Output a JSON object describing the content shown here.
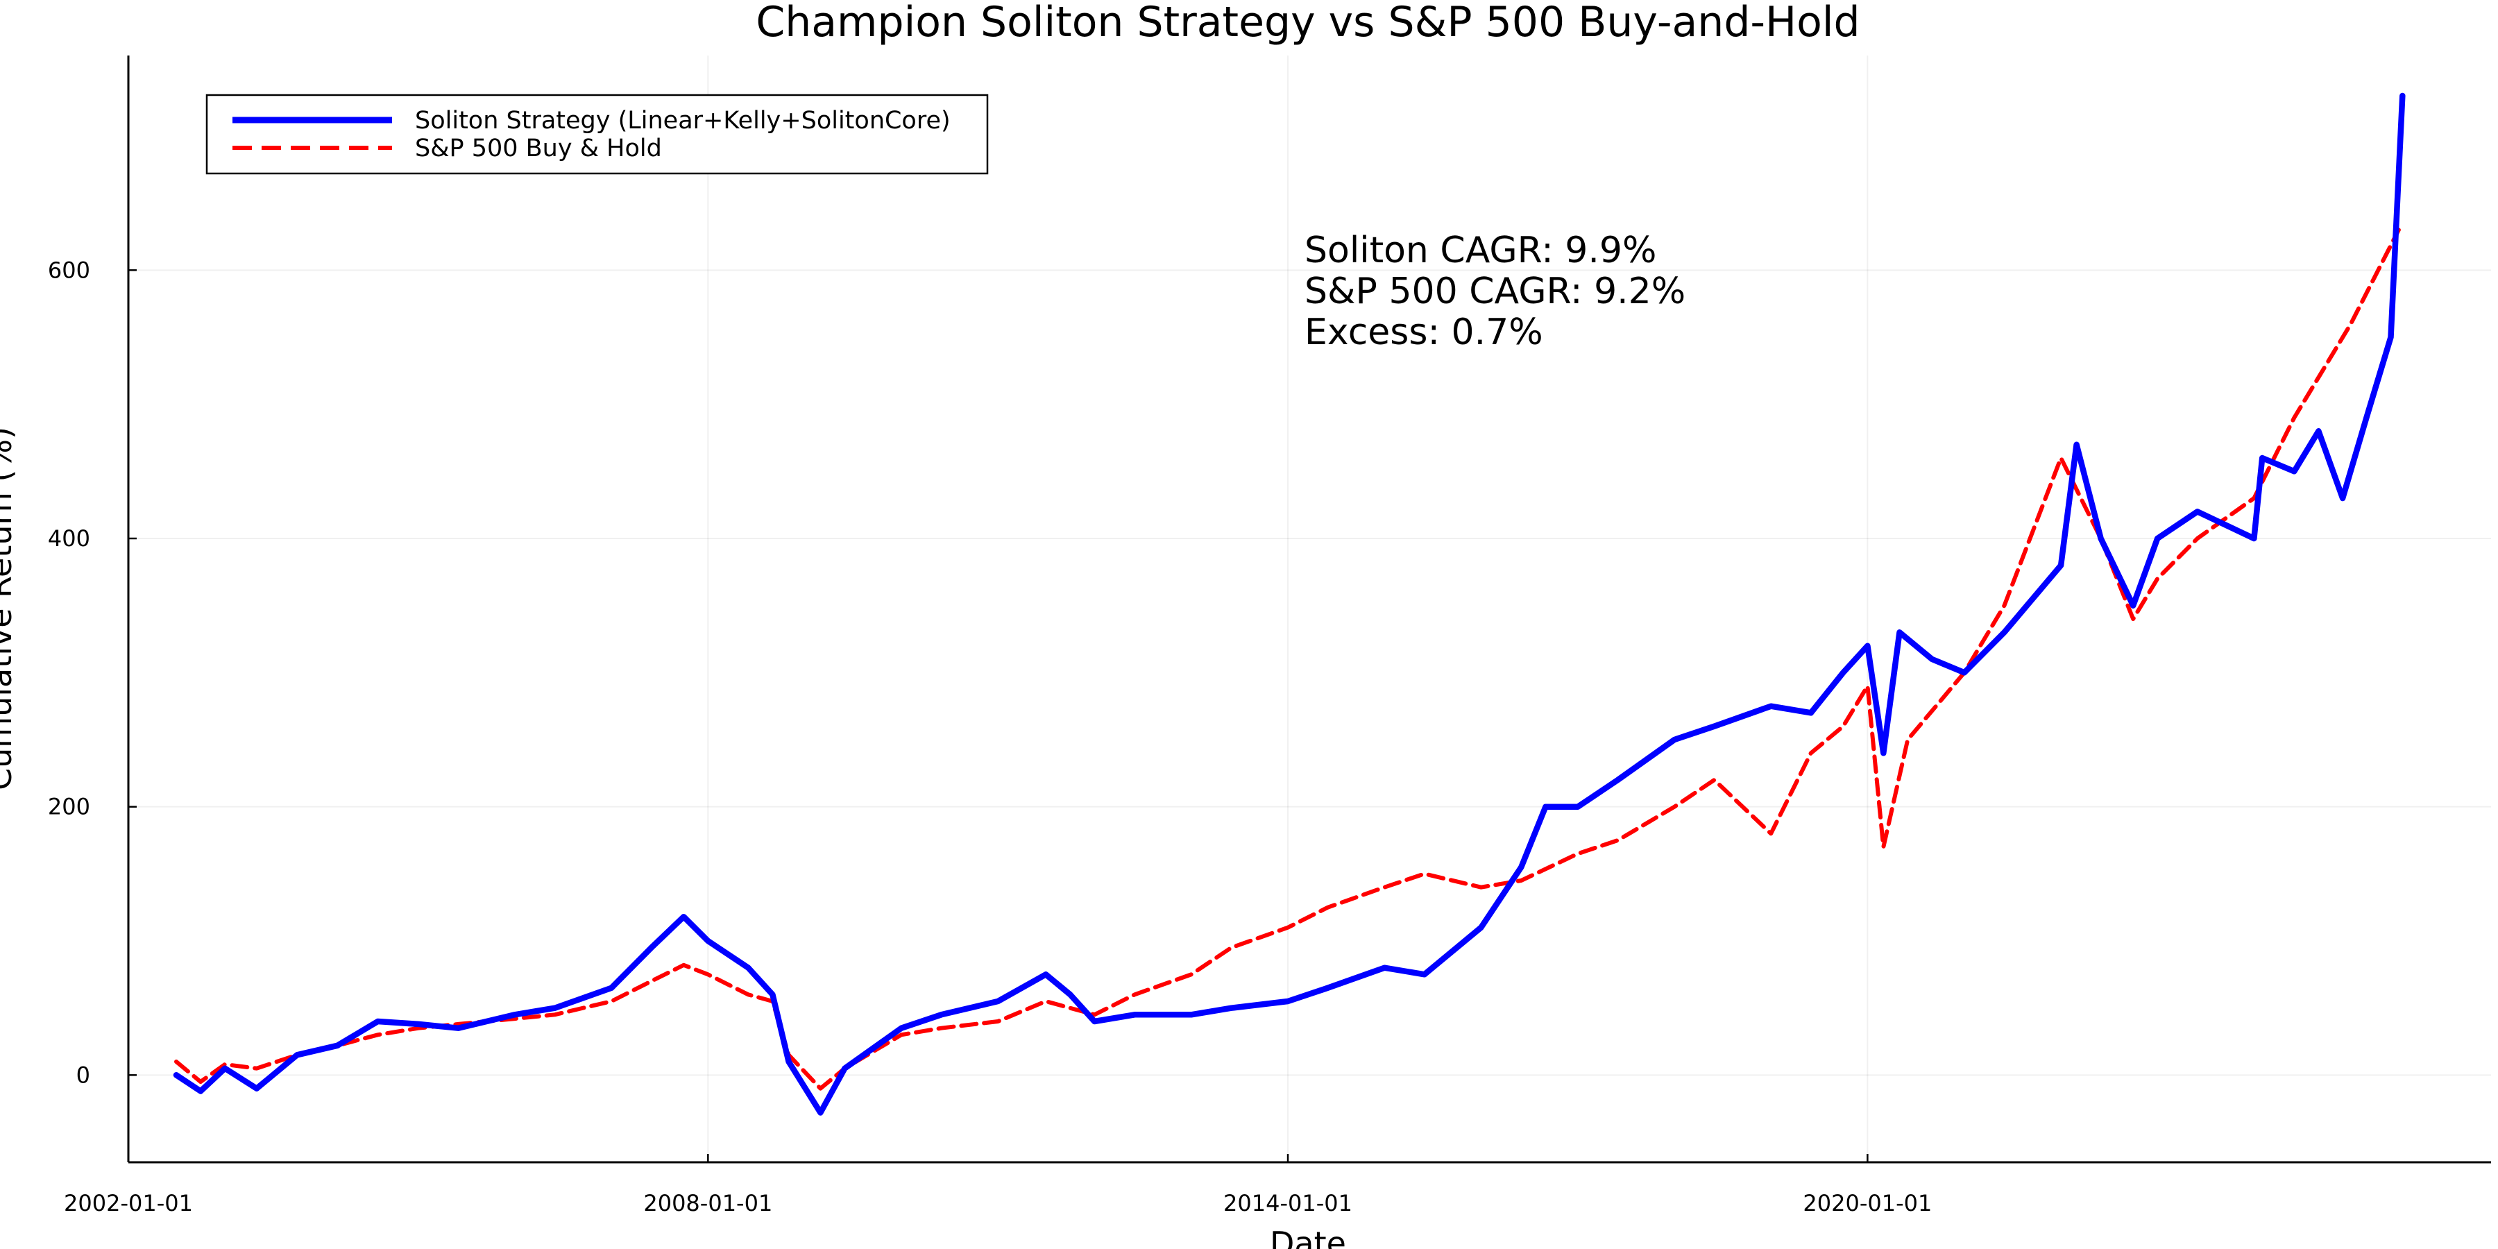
{
  "chart_data": {
    "type": "line",
    "title": "Champion Soliton Strategy vs S&P 500 Buy-and-Hold",
    "xlabel": "Date",
    "ylabel": "Cumulative Return (%)",
    "x_axis_type": "date",
    "xlim": [
      "2002-01-01",
      "2026-06-15"
    ],
    "ylim": [
      -65,
      760
    ],
    "x_ticks": [
      "2002-01-01",
      "2008-01-01",
      "2014-01-01",
      "2020-01-01"
    ],
    "y_ticks": [
      0,
      200,
      400,
      600
    ],
    "grid": true,
    "legend_position": "top-left",
    "annotations": [
      "Soliton CAGR: 9.9%",
      "S&P 500 CAGR: 9.2%",
      "Excess: 0.7%"
    ],
    "series": [
      {
        "name": "Soliton Strategy (Linear+Kelly+SolitonCore)",
        "color": "#0000ff",
        "style": "solid",
        "points": [
          [
            "2002-07-01",
            0
          ],
          [
            "2002-10-01",
            -12
          ],
          [
            "2003-01-01",
            5
          ],
          [
            "2003-05-01",
            -10
          ],
          [
            "2003-10-01",
            15
          ],
          [
            "2004-03-01",
            22
          ],
          [
            "2004-08-01",
            40
          ],
          [
            "2005-01-01",
            38
          ],
          [
            "2005-06-01",
            35
          ],
          [
            "2006-01-01",
            45
          ],
          [
            "2006-06-01",
            50
          ],
          [
            "2007-01-01",
            65
          ],
          [
            "2007-06-01",
            95
          ],
          [
            "2007-10-01",
            118
          ],
          [
            "2008-01-01",
            100
          ],
          [
            "2008-06-01",
            80
          ],
          [
            "2008-09-01",
            60
          ],
          [
            "2008-11-01",
            10
          ],
          [
            "2009-03-01",
            -28
          ],
          [
            "2009-06-01",
            5
          ],
          [
            "2010-01-01",
            35
          ],
          [
            "2010-06-01",
            45
          ],
          [
            "2011-01-01",
            55
          ],
          [
            "2011-07-01",
            75
          ],
          [
            "2011-10-01",
            60
          ],
          [
            "2012-01-01",
            40
          ],
          [
            "2012-06-01",
            45
          ],
          [
            "2013-01-01",
            45
          ],
          [
            "2013-06-01",
            50
          ],
          [
            "2014-01-01",
            55
          ],
          [
            "2014-06-01",
            65
          ],
          [
            "2015-01-01",
            80
          ],
          [
            "2015-06-01",
            75
          ],
          [
            "2016-01-01",
            110
          ],
          [
            "2016-06-01",
            155
          ],
          [
            "2016-09-01",
            200
          ],
          [
            "2017-01-01",
            200
          ],
          [
            "2017-06-01",
            220
          ],
          [
            "2018-01-01",
            250
          ],
          [
            "2018-06-01",
            260
          ],
          [
            "2019-01-01",
            275
          ],
          [
            "2019-06-01",
            270
          ],
          [
            "2019-10-01",
            300
          ],
          [
            "2020-01-01",
            320
          ],
          [
            "2020-03-01",
            240
          ],
          [
            "2020-05-01",
            330
          ],
          [
            "2020-09-01",
            310
          ],
          [
            "2021-01-01",
            300
          ],
          [
            "2021-06-01",
            330
          ],
          [
            "2022-01-01",
            380
          ],
          [
            "2022-03-01",
            470
          ],
          [
            "2022-06-01",
            400
          ],
          [
            "2022-10-01",
            350
          ],
          [
            "2023-01-01",
            400
          ],
          [
            "2023-06-01",
            420
          ],
          [
            "2024-01-01",
            400
          ],
          [
            "2024-02-01",
            460
          ],
          [
            "2024-06-01",
            450
          ],
          [
            "2024-09-01",
            480
          ],
          [
            "2024-12-01",
            430
          ],
          [
            "2025-03-01",
            490
          ],
          [
            "2025-06-01",
            550
          ],
          [
            "2025-07-15",
            730
          ]
        ]
      },
      {
        "name": "S&P 500 Buy & Hold",
        "color": "#ff0000",
        "style": "dashed",
        "points": [
          [
            "2002-07-01",
            10
          ],
          [
            "2002-10-01",
            -5
          ],
          [
            "2003-01-01",
            8
          ],
          [
            "2003-05-01",
            5
          ],
          [
            "2003-10-01",
            15
          ],
          [
            "2004-03-01",
            22
          ],
          [
            "2004-08-01",
            30
          ],
          [
            "2005-01-01",
            35
          ],
          [
            "2005-06-01",
            38
          ],
          [
            "2006-01-01",
            42
          ],
          [
            "2006-06-01",
            45
          ],
          [
            "2007-01-01",
            55
          ],
          [
            "2007-06-01",
            70
          ],
          [
            "2007-10-01",
            82
          ],
          [
            "2008-01-01",
            75
          ],
          [
            "2008-06-01",
            60
          ],
          [
            "2008-09-01",
            55
          ],
          [
            "2008-11-01",
            15
          ],
          [
            "2009-03-01",
            -10
          ],
          [
            "2009-06-01",
            5
          ],
          [
            "2010-01-01",
            30
          ],
          [
            "2010-06-01",
            35
          ],
          [
            "2011-01-01",
            40
          ],
          [
            "2011-07-01",
            55
          ],
          [
            "2011-10-01",
            50
          ],
          [
            "2012-01-01",
            45
          ],
          [
            "2012-06-01",
            60
          ],
          [
            "2013-01-01",
            75
          ],
          [
            "2013-06-01",
            95
          ],
          [
            "2014-01-01",
            110
          ],
          [
            "2014-06-01",
            125
          ],
          [
            "2015-01-01",
            140
          ],
          [
            "2015-06-01",
            150
          ],
          [
            "2016-01-01",
            140
          ],
          [
            "2016-06-01",
            145
          ],
          [
            "2017-01-01",
            165
          ],
          [
            "2017-06-01",
            175
          ],
          [
            "2018-01-01",
            200
          ],
          [
            "2018-06-01",
            220
          ],
          [
            "2019-01-01",
            180
          ],
          [
            "2019-06-01",
            240
          ],
          [
            "2019-10-01",
            260
          ],
          [
            "2020-01-01",
            290
          ],
          [
            "2020-03-01",
            170
          ],
          [
            "2020-06-01",
            250
          ],
          [
            "2021-01-01",
            300
          ],
          [
            "2021-06-01",
            350
          ],
          [
            "2022-01-01",
            460
          ],
          [
            "2022-06-01",
            400
          ],
          [
            "2022-10-01",
            340
          ],
          [
            "2023-01-01",
            370
          ],
          [
            "2023-06-01",
            400
          ],
          [
            "2024-01-01",
            430
          ],
          [
            "2024-06-01",
            490
          ],
          [
            "2025-01-01",
            560
          ],
          [
            "2025-07-01",
            630
          ]
        ]
      }
    ]
  }
}
